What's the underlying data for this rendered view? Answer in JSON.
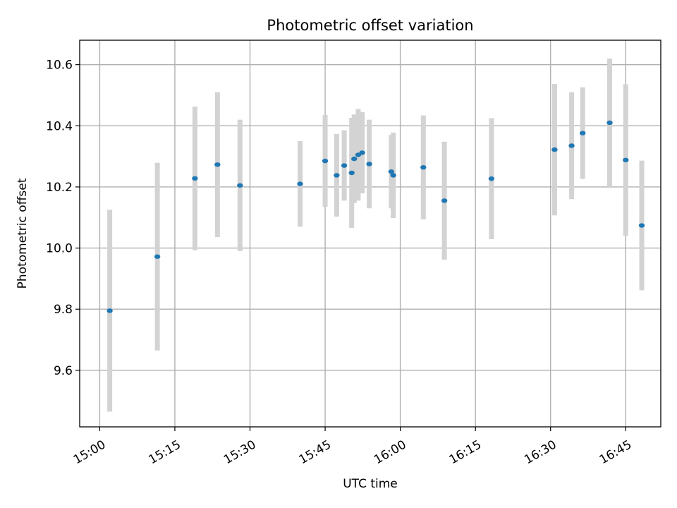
{
  "chart_data": {
    "type": "scatter",
    "title": "Photometric offset variation",
    "xlabel": "UTC time",
    "ylabel": "Photometric offset",
    "x_axis_kind": "time",
    "xlim": [
      "14:56",
      "16:52"
    ],
    "ylim": [
      9.415,
      10.68
    ],
    "x_ticks": [
      "15:00",
      "15:15",
      "15:30",
      "15:45",
      "16:00",
      "16:15",
      "16:30",
      "16:45"
    ],
    "y_ticks": [
      9.6,
      9.8,
      10.0,
      10.2,
      10.4,
      10.6
    ],
    "y_tick_labels": [
      "9.6",
      "9.8",
      "10.0",
      "10.2",
      "10.4",
      "10.6"
    ],
    "grid": true,
    "marker_color": "#1f77b4",
    "errorbar_color": "#d3d3d3",
    "points": [
      {
        "x": "15:02",
        "y": 9.795,
        "err": 0.33
      },
      {
        "x": "15:11.5",
        "y": 9.972,
        "err": 0.307
      },
      {
        "x": "15:19",
        "y": 10.228,
        "err": 0.235
      },
      {
        "x": "15:23.5",
        "y": 10.273,
        "err": 0.237
      },
      {
        "x": "15:28",
        "y": 10.205,
        "err": 0.215
      },
      {
        "x": "15:40",
        "y": 10.21,
        "err": 0.14
      },
      {
        "x": "15:45",
        "y": 10.285,
        "err": 0.15
      },
      {
        "x": "15:47.3",
        "y": 10.238,
        "err": 0.135
      },
      {
        "x": "15:48.8",
        "y": 10.27,
        "err": 0.115
      },
      {
        "x": "15:50.3",
        "y": 10.246,
        "err": 0.18
      },
      {
        "x": "15:50.8",
        "y": 10.292,
        "err": 0.145
      },
      {
        "x": "15:51.6",
        "y": 10.305,
        "err": 0.15
      },
      {
        "x": "15:52.4",
        "y": 10.312,
        "err": 0.133
      },
      {
        "x": "15:53.8",
        "y": 10.275,
        "err": 0.145
      },
      {
        "x": "15:58.2",
        "y": 10.25,
        "err": 0.12
      },
      {
        "x": "15:58.6",
        "y": 10.238,
        "err": 0.14
      },
      {
        "x": "16:04.6",
        "y": 10.264,
        "err": 0.17
      },
      {
        "x": "16:08.8",
        "y": 10.155,
        "err": 0.193
      },
      {
        "x": "16:18.2",
        "y": 10.227,
        "err": 0.198
      },
      {
        "x": "16:30.8",
        "y": 10.322,
        "err": 0.215
      },
      {
        "x": "16:34.2",
        "y": 10.335,
        "err": 0.175
      },
      {
        "x": "16:36.4",
        "y": 10.376,
        "err": 0.15
      },
      {
        "x": "16:41.8",
        "y": 10.41,
        "err": 0.21
      },
      {
        "x": "16:45",
        "y": 10.288,
        "err": 0.248
      },
      {
        "x": "16:48.2",
        "y": 10.074,
        "err": 0.212
      }
    ]
  }
}
